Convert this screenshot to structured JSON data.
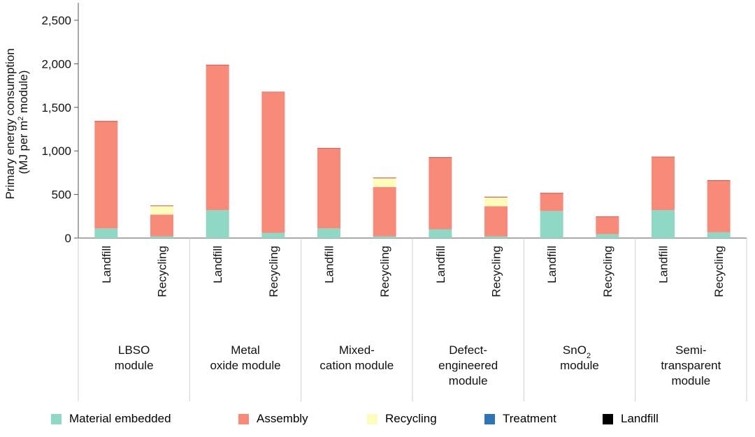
{
  "chart_data": {
    "type": "bar",
    "stacked": true,
    "ylabel_line1": "Primary energy consumption",
    "ylabel_line2_pre": "(MJ per m",
    "ylabel_line2_sup": "2",
    "ylabel_line2_post": " module)",
    "ylim": [
      0,
      2500
    ],
    "yticks": [
      "0",
      "500",
      "1,000",
      "1,500",
      "2,000",
      "2,500"
    ],
    "ytick_values": [
      0,
      500,
      1000,
      1500,
      2000,
      2500
    ],
    "categories": [
      "Landfill",
      "Recycling",
      "Landfill",
      "Recycling",
      "Landfill",
      "Recycling",
      "Landfill",
      "Recycling",
      "Landfill",
      "Recycling",
      "Landfill",
      "Recycling"
    ],
    "groups": [
      {
        "lines": [
          "LBSO",
          "module"
        ]
      },
      {
        "lines": [
          "Metal",
          "oxide module"
        ]
      },
      {
        "lines": [
          "Mixed-",
          "cation module"
        ]
      },
      {
        "lines": [
          "Defect-",
          "engineered",
          "module"
        ]
      },
      {
        "lines": [
          "SnO",
          "module"
        ],
        "subscript": "2"
      },
      {
        "lines": [
          "Semi-",
          "transparent",
          "module"
        ]
      }
    ],
    "series": [
      {
        "name": "Material embedded",
        "color": "#8fd8c5",
        "values": [
          110,
          20,
          320,
          60,
          110,
          20,
          100,
          20,
          310,
          45,
          320,
          65
        ]
      },
      {
        "name": "Assembly",
        "color": "#f88a7a",
        "values": [
          1230,
          250,
          1665,
          1610,
          920,
          565,
          825,
          345,
          205,
          200,
          610,
          595
        ]
      },
      {
        "name": "Recycling",
        "color": "#fdfcbc",
        "values": [
          0,
          100,
          0,
          5,
          0,
          105,
          0,
          105,
          0,
          0,
          0,
          0
        ]
      },
      {
        "name": "Treatment",
        "color": "#2f74b5",
        "values": [
          0,
          0,
          0,
          0,
          0,
          0,
          0,
          0,
          0,
          0,
          0,
          0
        ]
      },
      {
        "name": "Landfill",
        "color": "#000000",
        "values": [
          0,
          0,
          0,
          0,
          0,
          0,
          0,
          0,
          0,
          0,
          0,
          0
        ]
      }
    ]
  }
}
